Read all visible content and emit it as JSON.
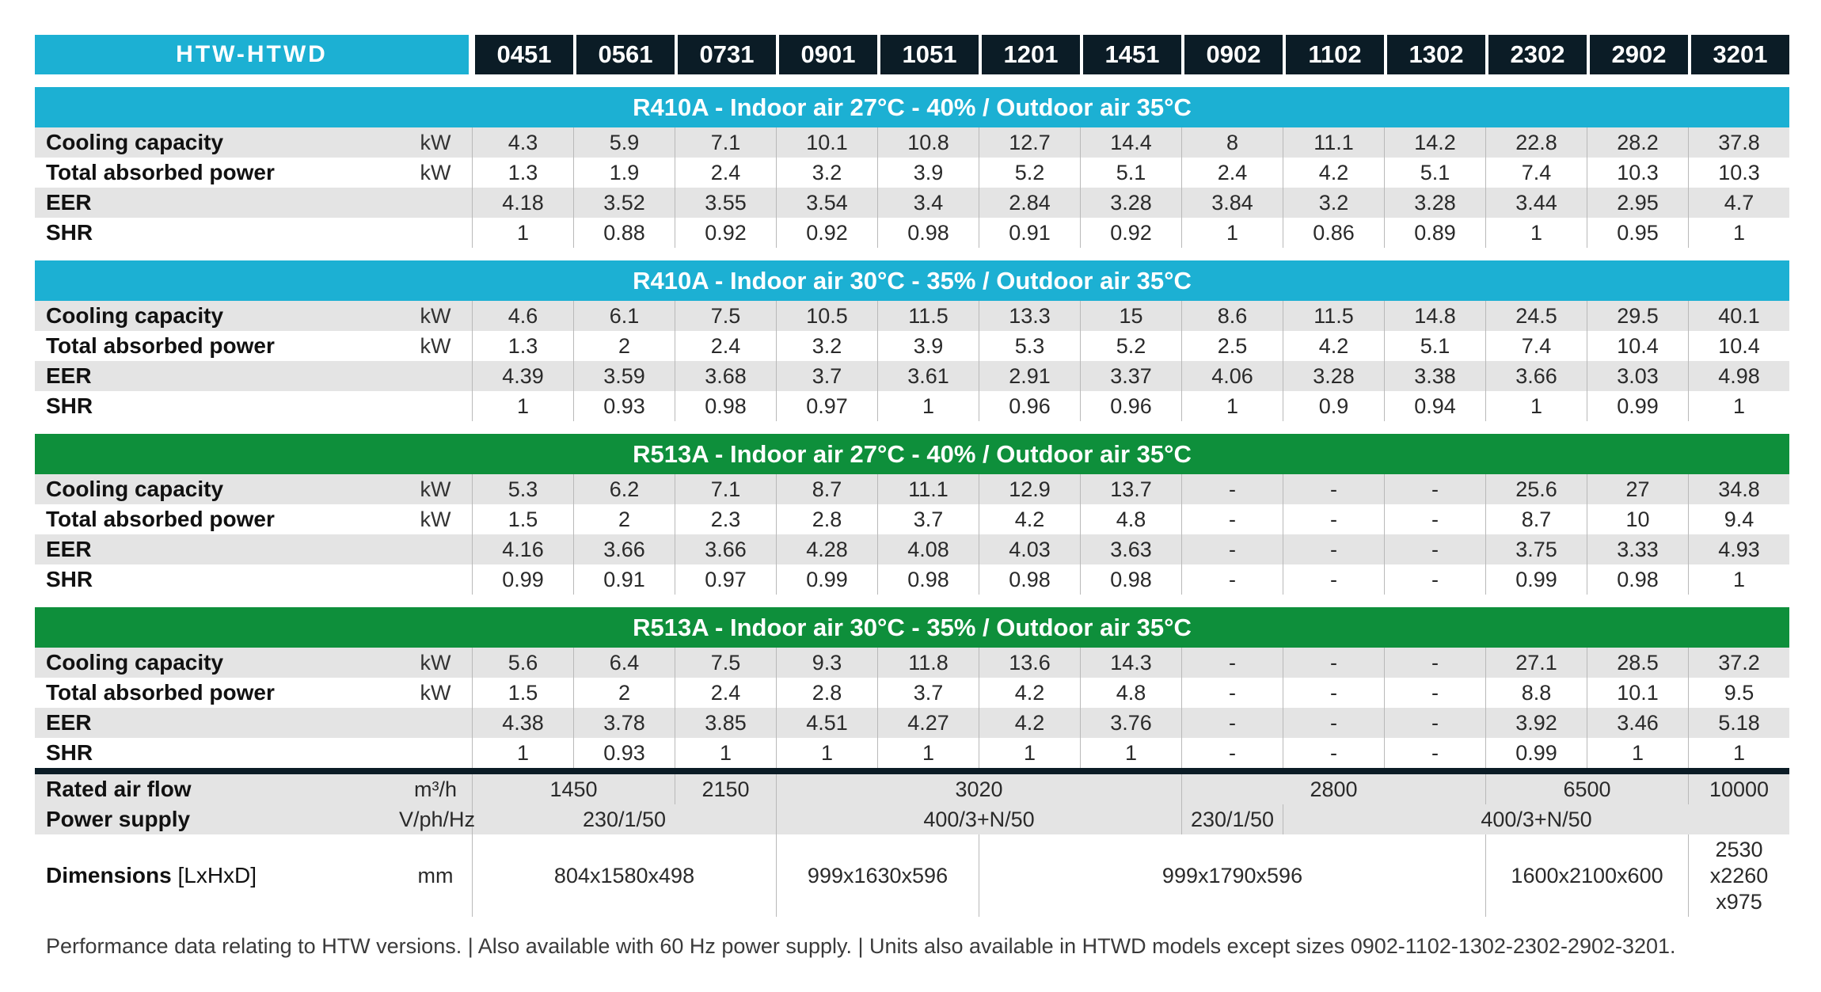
{
  "header": {
    "series": "HTW-HTWD",
    "models": [
      "0451",
      "0561",
      "0731",
      "0901",
      "1051",
      "1201",
      "1451",
      "0902",
      "1102",
      "1302",
      "2302",
      "2902",
      "3201"
    ]
  },
  "sections": [
    {
      "title": "R410A - Indoor air 27°C -  40% / Outdoor air 35°C",
      "color": "#1cb0d3",
      "rows": [
        {
          "label": "Cooling capacity",
          "unit": "kW",
          "values": [
            "4.3",
            "5.9",
            "7.1",
            "10.1",
            "10.8",
            "12.7",
            "14.4",
            "8",
            "11.1",
            "14.2",
            "22.8",
            "28.2",
            "37.8"
          ]
        },
        {
          "label": "Total absorbed power",
          "unit": "kW",
          "values": [
            "1.3",
            "1.9",
            "2.4",
            "3.2",
            "3.9",
            "5.2",
            "5.1",
            "2.4",
            "4.2",
            "5.1",
            "7.4",
            "10.3",
            "10.3"
          ]
        },
        {
          "label": "EER",
          "unit": "",
          "values": [
            "4.18",
            "3.52",
            "3.55",
            "3.54",
            "3.4",
            "2.84",
            "3.28",
            "3.84",
            "3.2",
            "3.28",
            "3.44",
            "2.95",
            "4.7"
          ]
        },
        {
          "label": "SHR",
          "unit": "",
          "values": [
            "1",
            "0.88",
            "0.92",
            "0.92",
            "0.98",
            "0.91",
            "0.92",
            "1",
            "0.86",
            "0.89",
            "1",
            "0.95",
            "1"
          ]
        }
      ]
    },
    {
      "title": "R410A - Indoor air 30°C -  35% / Outdoor air 35°C",
      "color": "#1cb0d3",
      "rows": [
        {
          "label": "Cooling capacity",
          "unit": "kW",
          "values": [
            "4.6",
            "6.1",
            "7.5",
            "10.5",
            "11.5",
            "13.3",
            "15",
            "8.6",
            "11.5",
            "14.8",
            "24.5",
            "29.5",
            "40.1"
          ]
        },
        {
          "label": "Total absorbed power",
          "unit": "kW",
          "values": [
            "1.3",
            "2",
            "2.4",
            "3.2",
            "3.9",
            "5.3",
            "5.2",
            "2.5",
            "4.2",
            "5.1",
            "7.4",
            "10.4",
            "10.4"
          ]
        },
        {
          "label": "EER",
          "unit": "",
          "values": [
            "4.39",
            "3.59",
            "3.68",
            "3.7",
            "3.61",
            "2.91",
            "3.37",
            "4.06",
            "3.28",
            "3.38",
            "3.66",
            "3.03",
            "4.98"
          ]
        },
        {
          "label": "SHR",
          "unit": "",
          "values": [
            "1",
            "0.93",
            "0.98",
            "0.97",
            "1",
            "0.96",
            "0.96",
            "1",
            "0.9",
            "0.94",
            "1",
            "0.99",
            "1"
          ]
        }
      ]
    },
    {
      "title": "R513A - Indoor air 27°C - 40% / Outdoor air 35°C",
      "color": "#0e8f3b",
      "rows": [
        {
          "label": "Cooling capacity",
          "unit": "kW",
          "values": [
            "5.3",
            "6.2",
            "7.1",
            "8.7",
            "11.1",
            "12.9",
            "13.7",
            "-",
            "-",
            "-",
            "25.6",
            "27",
            "34.8"
          ]
        },
        {
          "label": "Total absorbed power",
          "unit": "kW",
          "values": [
            "1.5",
            "2",
            "2.3",
            "2.8",
            "3.7",
            "4.2",
            "4.8",
            "-",
            "-",
            "-",
            "8.7",
            "10",
            "9.4"
          ]
        },
        {
          "label": "EER",
          "unit": "",
          "values": [
            "4.16",
            "3.66",
            "3.66",
            "4.28",
            "4.08",
            "4.03",
            "3.63",
            "-",
            "-",
            "-",
            "3.75",
            "3.33",
            "4.93"
          ]
        },
        {
          "label": "SHR",
          "unit": "",
          "values": [
            "0.99",
            "0.91",
            "0.97",
            "0.99",
            "0.98",
            "0.98",
            "0.98",
            "-",
            "-",
            "-",
            "0.99",
            "0.98",
            "1"
          ]
        }
      ]
    },
    {
      "title": "R513A - Indoor air 30°C - 35% / Outdoor air 35°C",
      "color": "#0e8f3b",
      "rows": [
        {
          "label": "Cooling capacity",
          "unit": "kW",
          "values": [
            "5.6",
            "6.4",
            "7.5",
            "9.3",
            "11.8",
            "13.6",
            "14.3",
            "-",
            "-",
            "-",
            "27.1",
            "28.5",
            "37.2"
          ]
        },
        {
          "label": "Total absorbed power",
          "unit": "kW",
          "values": [
            "1.5",
            "2",
            "2.4",
            "2.8",
            "3.7",
            "4.2",
            "4.8",
            "-",
            "-",
            "-",
            "8.8",
            "10.1",
            "9.5"
          ]
        },
        {
          "label": "EER",
          "unit": "",
          "values": [
            "4.38",
            "3.78",
            "3.85",
            "4.51",
            "4.27",
            "4.2",
            "3.76",
            "-",
            "-",
            "-",
            "3.92",
            "3.46",
            "5.18"
          ]
        },
        {
          "label": "SHR",
          "unit": "",
          "values": [
            "1",
            "0.93",
            "1",
            "1",
            "1",
            "1",
            "1",
            "-",
            "-",
            "-",
            "0.99",
            "1",
            "1"
          ]
        }
      ]
    }
  ],
  "specs": {
    "rated_air_flow": {
      "label": "Rated air flow",
      "unit": "m³/h",
      "cells": [
        {
          "value": "1450",
          "span": 2
        },
        {
          "value": "2150",
          "span": 1
        },
        {
          "value": "3020",
          "span": 4
        },
        {
          "value": "2800",
          "span": 3
        },
        {
          "value": "6500",
          "span": 2
        },
        {
          "value": "10000",
          "span": 1
        }
      ]
    },
    "power_supply": {
      "label": "Power supply",
      "unit": "V/ph/Hz",
      "cells": [
        {
          "value": "230/1/50",
          "span": 3
        },
        {
          "value": "400/3+N/50",
          "span": 4
        },
        {
          "value": "230/1/50",
          "span": 1
        },
        {
          "value": "400/3+N/50",
          "span": 5
        }
      ]
    },
    "dimensions": {
      "label": "Dimensions",
      "label_suffix": "[LxHxD]",
      "unit": "mm",
      "cells": [
        {
          "value": "804x1580x498",
          "span": 3
        },
        {
          "value": "999x1630x596",
          "span": 2
        },
        {
          "value": "999x1790x596",
          "span": 5
        },
        {
          "value": "1600x2100x600",
          "span": 2
        },
        {
          "value": "2530\nx2260\nx975",
          "span": 1
        }
      ]
    }
  },
  "footnote": "Performance data relating to HTW versions. | Also available with 60 Hz power supply. | Units also available in HTWD models except sizes 0902-1102-1302-2302-2902-3201."
}
